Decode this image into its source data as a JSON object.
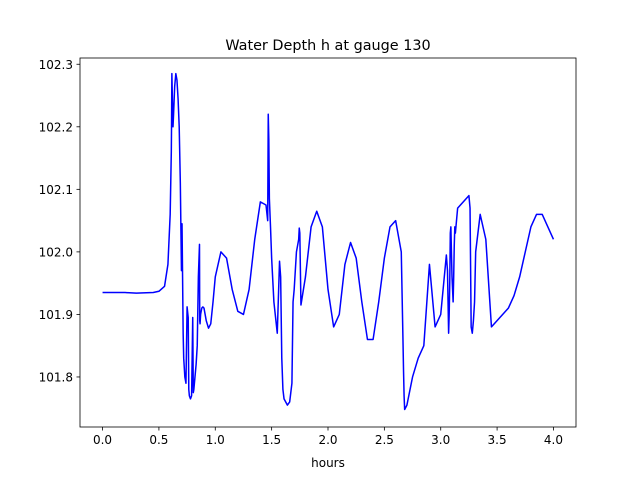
{
  "chart_data": {
    "type": "line",
    "title": "Water Depth h at gauge 130",
    "xlabel": "hours",
    "ylabel": "",
    "xlim": [
      -0.2,
      4.2
    ],
    "ylim": [
      101.72,
      102.31
    ],
    "xticks": [
      0.0,
      0.5,
      1.0,
      1.5,
      2.0,
      2.5,
      3.0,
      3.5,
      4.0
    ],
    "xtick_labels": [
      "0.0",
      "0.5",
      "1.0",
      "1.5",
      "2.0",
      "2.5",
      "3.0",
      "3.5",
      "4.0"
    ],
    "yticks": [
      101.8,
      101.9,
      102.0,
      102.1,
      102.2,
      102.3
    ],
    "ytick_labels": [
      "101.8",
      "101.9",
      "102.0",
      "102.1",
      "102.2",
      "102.3"
    ],
    "grid": false,
    "series": [
      {
        "color": "#0000ff",
        "x": [
          0.0,
          0.2,
          0.3,
          0.45,
          0.5,
          0.55,
          0.58,
          0.6,
          0.61,
          0.612,
          0.615,
          0.62,
          0.625,
          0.63,
          0.64,
          0.65,
          0.66,
          0.67,
          0.68,
          0.69,
          0.7,
          0.705,
          0.71,
          0.715,
          0.72,
          0.73,
          0.74,
          0.75,
          0.76,
          0.765,
          0.77,
          0.78,
          0.79,
          0.8,
          0.805,
          0.81,
          0.82,
          0.83,
          0.84,
          0.85,
          0.86,
          0.862,
          0.865,
          0.87,
          0.875,
          0.88,
          0.89,
          0.9,
          0.92,
          0.94,
          0.96,
          0.98,
          1.0,
          1.05,
          1.1,
          1.15,
          1.2,
          1.25,
          1.3,
          1.35,
          1.4,
          1.45,
          1.465,
          1.47,
          1.475,
          1.48,
          1.49,
          1.5,
          1.52,
          1.55,
          1.57,
          1.58,
          1.59,
          1.6,
          1.61,
          1.64,
          1.66,
          1.68,
          1.69,
          1.7,
          1.72,
          1.74,
          1.745,
          1.75,
          1.76,
          1.8,
          1.85,
          1.9,
          1.95,
          2.0,
          2.05,
          2.1,
          2.15,
          2.2,
          2.25,
          2.3,
          2.35,
          2.4,
          2.45,
          2.5,
          2.55,
          2.6,
          2.65,
          2.665,
          2.67,
          2.675,
          2.68,
          2.7,
          2.75,
          2.8,
          2.85,
          2.9,
          2.95,
          3.0,
          3.05,
          3.06,
          3.07,
          3.075,
          3.08,
          3.085,
          3.09,
          3.1,
          3.11,
          3.115,
          3.12,
          3.125,
          3.13,
          3.15,
          3.2,
          3.25,
          3.26,
          3.27,
          3.28,
          3.29,
          3.3,
          3.31,
          3.35,
          3.4,
          3.45,
          3.5,
          3.55,
          3.6,
          3.65,
          3.7,
          3.75,
          3.8,
          3.85,
          3.9,
          3.95,
          4.0
        ],
        "y": [
          101.935,
          101.935,
          101.934,
          101.935,
          101.937,
          101.945,
          101.98,
          102.06,
          102.16,
          102.2,
          102.285,
          102.24,
          102.2,
          102.22,
          102.265,
          102.285,
          102.275,
          102.245,
          102.2,
          102.11,
          101.97,
          102.045,
          101.96,
          101.87,
          101.83,
          101.8,
          101.79,
          101.912,
          101.895,
          101.78,
          101.77,
          101.765,
          101.77,
          101.895,
          101.775,
          101.78,
          101.8,
          101.82,
          101.85,
          101.96,
          102.012,
          101.89,
          101.885,
          101.9,
          101.905,
          101.91,
          101.912,
          101.91,
          101.89,
          101.878,
          101.885,
          101.92,
          101.96,
          102.0,
          101.99,
          101.94,
          101.905,
          101.9,
          101.94,
          102.02,
          102.08,
          102.075,
          102.05,
          102.22,
          102.18,
          102.085,
          102.04,
          101.99,
          101.92,
          101.87,
          101.985,
          101.96,
          101.83,
          101.78,
          101.765,
          101.755,
          101.76,
          101.79,
          101.92,
          101.94,
          102.0,
          102.02,
          102.038,
          102.03,
          101.915,
          101.96,
          102.04,
          102.065,
          102.04,
          101.94,
          101.88,
          101.9,
          101.98,
          102.015,
          101.99,
          101.92,
          101.86,
          101.86,
          101.92,
          101.99,
          102.04,
          102.05,
          102.0,
          101.86,
          101.81,
          101.77,
          101.748,
          101.755,
          101.8,
          101.83,
          101.85,
          101.98,
          101.88,
          101.9,
          101.995,
          101.97,
          101.87,
          101.9,
          101.95,
          102.03,
          102.04,
          101.96,
          101.92,
          101.96,
          102.01,
          102.04,
          102.03,
          102.07,
          102.08,
          102.09,
          102.07,
          101.88,
          101.87,
          101.89,
          101.92,
          102.0,
          102.06,
          102.02,
          101.88,
          101.89,
          101.9,
          101.91,
          101.93,
          101.96,
          102.0,
          102.04,
          102.06,
          102.06,
          102.04,
          102.02
        ]
      }
    ]
  }
}
